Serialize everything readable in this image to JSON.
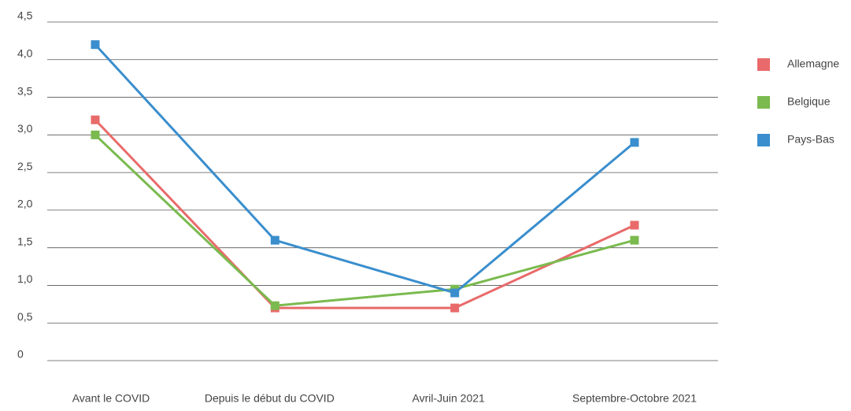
{
  "chart_data": {
    "type": "line",
    "categories": [
      "Avant le COVID",
      "Depuis le début du COVID",
      "Avril-Juin 2021",
      "Septembre-Octobre 2021"
    ],
    "series": [
      {
        "name": "Allemagne",
        "color": "#e96a6a",
        "values": [
          3.2,
          0.7,
          0.7,
          1.8
        ]
      },
      {
        "name": "Belgique",
        "color": "#7aba4f",
        "values": [
          3.0,
          0.73,
          0.95,
          1.6
        ]
      },
      {
        "name": "Pays-Bas",
        "color": "#3a8ecd",
        "values": [
          4.2,
          1.6,
          0.9,
          2.9
        ]
      }
    ],
    "ylim": [
      0,
      4.5
    ],
    "yticks": [
      0,
      {
        "value": 0.5,
        "label": "0,5"
      },
      {
        "value": 1.0,
        "label": "1,0"
      },
      {
        "value": 1.5,
        "label": "1,5"
      },
      {
        "value": 2.0,
        "label": "2,0"
      },
      {
        "value": 2.5,
        "label": "2,5"
      },
      {
        "value": 3.0,
        "label": "3,0"
      },
      {
        "value": 3.5,
        "label": "3,5"
      },
      {
        "value": 4.0,
        "label": "4,0"
      },
      {
        "value": 4.5,
        "label": "4,5"
      }
    ],
    "grid": true,
    "legend": "right"
  }
}
